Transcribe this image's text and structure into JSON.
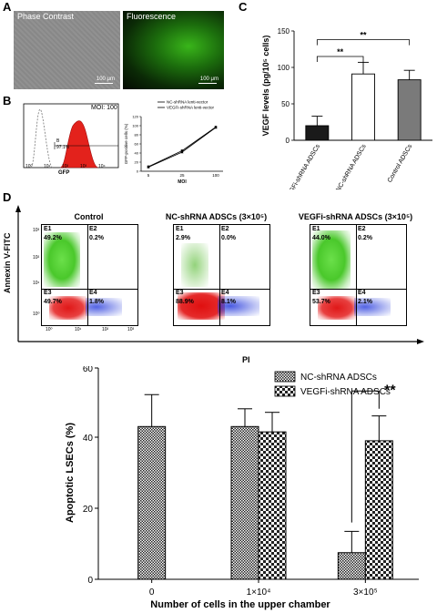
{
  "panels": {
    "A": {
      "letter": "A",
      "left_label": "Phase Contrast",
      "right_label": "Fluorescence",
      "scale_left": "100 μm",
      "scale_right": "100 μm"
    },
    "B": {
      "letter": "B",
      "histogram": {
        "moi_label": "MOI: 100",
        "gate_label": "B",
        "gate_value": "97.1%",
        "xlabel": "GFP",
        "ticks": [
          "10⁰",
          "10¹",
          "10²",
          "10³",
          "10⁴"
        ]
      },
      "line": {
        "legend": [
          "NC-shRNA lenti-vector",
          "VEGFi-shRNA lenti-vector"
        ],
        "ylabel": "GFP-positive cells (%)",
        "xlabel": "MOI"
      }
    },
    "C": {
      "letter": "C",
      "significance": [
        "**",
        "**"
      ]
    },
    "D": {
      "letter": "D",
      "ylabel": "Annexin V-FITC",
      "xlabel": "PI",
      "plots": [
        {
          "title": "Control",
          "E1": "E1",
          "E2": "E2",
          "E3": "E3",
          "E4": "E4",
          "v1": "49.2%",
          "v2": "0.2%",
          "v3": "49.7%",
          "v4": "1.8%"
        },
        {
          "title": "NC-shRNA ADSCs (3×10⁵)",
          "E1": "E1",
          "E2": "E2",
          "E3": "E3",
          "E4": "E4",
          "v1": "2.9%",
          "v2": "0.0%",
          "v3": "88.9%",
          "v4": "8.1%"
        },
        {
          "title": "VEGFi-shRNA ADSCs (3×10⁵)",
          "E1": "E1",
          "E2": "E2",
          "E3": "E3",
          "E4": "E4",
          "v1": "44.0%",
          "v2": "0.2%",
          "v3": "53.7%",
          "v4": "2.1%"
        }
      ],
      "axis_ticks": [
        "10⁰",
        "10¹",
        "10²",
        "10³"
      ]
    }
  },
  "chart_data": [
    {
      "type": "line",
      "panel": "B",
      "x": [
        5,
        25,
        100
      ],
      "x_tick_labels": [
        "5",
        "25",
        "100"
      ],
      "series": [
        {
          "name": "NC-shRNA lenti-vector",
          "values": [
            10,
            45,
            97
          ]
        },
        {
          "name": "VEGFi-shRNA lenti-vector",
          "values": [
            9,
            42,
            96
          ]
        }
      ],
      "title": "",
      "xlabel": "MOI",
      "ylabel": "GFP-positive cells (%)",
      "ylim": [
        0,
        120
      ],
      "y_ticks": [
        0,
        20,
        40,
        60,
        80,
        100,
        120
      ]
    },
    {
      "type": "bar",
      "panel": "C",
      "categories": [
        "VEGFi-shRNA ADSCs",
        "NC-shRNA ADSCs",
        "Control ADSCs"
      ],
      "values": [
        20,
        91,
        83
      ],
      "errors": [
        13,
        16,
        13
      ],
      "colors": [
        "#1a1a1a",
        "#ffffff",
        "#7a7a7a"
      ],
      "title": "",
      "xlabel": "",
      "ylabel": "VEGF levels (pg/10⁵ cells)",
      "ylim": [
        0,
        150
      ],
      "y_ticks": [
        0,
        50,
        100,
        150
      ],
      "significance": [
        {
          "from": "VEGFi-shRNA ADSCs",
          "to": "NC-shRNA ADSCs",
          "label": "**"
        },
        {
          "from": "VEGFi-shRNA ADSCs",
          "to": "Control ADSCs",
          "label": "**"
        }
      ]
    },
    {
      "type": "bar",
      "panel": "bottom",
      "categories": [
        "0",
        "1×10⁴",
        "3×10⁵"
      ],
      "series": [
        {
          "name": "NC-shRNA ADSCs",
          "values": [
            43,
            43,
            7.5
          ],
          "errors": [
            9,
            5,
            6
          ]
        },
        {
          "name": "VEGFi-shRNA ADSCs",
          "values": [
            null,
            41.5,
            39
          ],
          "errors": [
            null,
            5.5,
            7
          ]
        }
      ],
      "title": "",
      "xlabel": "Number of cells in the upper chamber",
      "ylabel": "Apoptotic LSECs (%)",
      "ylim": [
        0,
        60
      ],
      "y_ticks": [
        0,
        20,
        40,
        60
      ],
      "legend_position": "top-right",
      "significance": [
        {
          "category": "3×10⁵",
          "label": "**"
        }
      ]
    }
  ]
}
